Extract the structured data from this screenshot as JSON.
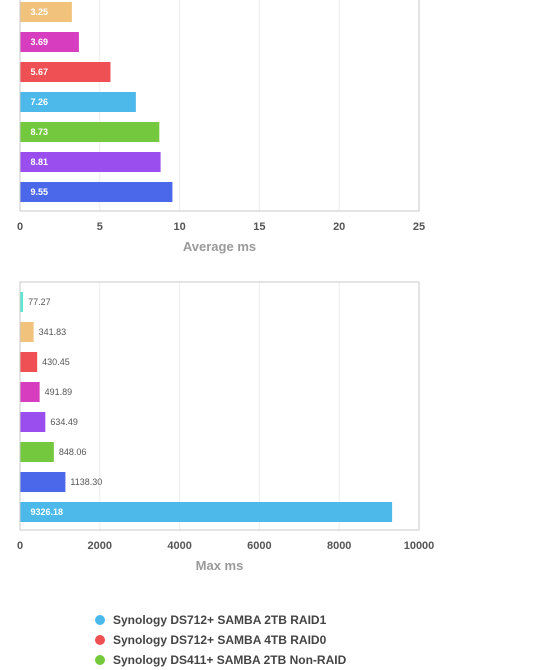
{
  "chart_data": [
    {
      "type": "bar",
      "orientation": "horizontal",
      "xlabel": "Average ms",
      "xlim": [
        0,
        25
      ],
      "xticks": [
        "0",
        "5",
        "10",
        "15",
        "20",
        "25"
      ],
      "grid": true,
      "bars": [
        {
          "value": 3.25,
          "label": "3.25",
          "color": "#f0c27c"
        },
        {
          "value": 3.69,
          "label": "3.69",
          "color": "#d63ebf"
        },
        {
          "value": 5.67,
          "label": "5.67",
          "color": "#ef5053"
        },
        {
          "value": 7.26,
          "label": "7.26",
          "color": "#4cb9ea"
        },
        {
          "value": 8.73,
          "label": "8.73",
          "color": "#74c83e"
        },
        {
          "value": 8.81,
          "label": "8.81",
          "color": "#9a4eed"
        },
        {
          "value": 9.55,
          "label": "9.55",
          "color": "#4c68ea"
        }
      ]
    },
    {
      "type": "bar",
      "orientation": "horizontal",
      "xlabel": "Max ms",
      "xlim": [
        0,
        10000
      ],
      "xticks": [
        "0",
        "2000",
        "4000",
        "6000",
        "8000",
        "10000"
      ],
      "grid": true,
      "bars": [
        {
          "value": 77.27,
          "label": "77.27",
          "color": "#5ee4cf"
        },
        {
          "value": 341.83,
          "label": "341.83",
          "color": "#f0c27c"
        },
        {
          "value": 430.45,
          "label": "430.45",
          "color": "#ef5053"
        },
        {
          "value": 491.89,
          "label": "491.89",
          "color": "#d63ebf"
        },
        {
          "value": 634.49,
          "label": "634.49",
          "color": "#9a4eed"
        },
        {
          "value": 848.06,
          "label": "848.06",
          "color": "#74c83e"
        },
        {
          "value": 1138.3,
          "label": "1138.30",
          "color": "#4c68ea"
        },
        {
          "value": 9326.18,
          "label": "9326.18",
          "color": "#4cb9ea"
        }
      ]
    }
  ],
  "legend": [
    {
      "label": "Synology DS712+ SAMBA 2TB RAID1",
      "color": "#4cb9ea"
    },
    {
      "label": "Synology DS712+ SAMBA 4TB RAID0",
      "color": "#ef5053"
    },
    {
      "label": "Synology DS411+ SAMBA 2TB Non-RAID",
      "color": "#74c83e"
    }
  ]
}
